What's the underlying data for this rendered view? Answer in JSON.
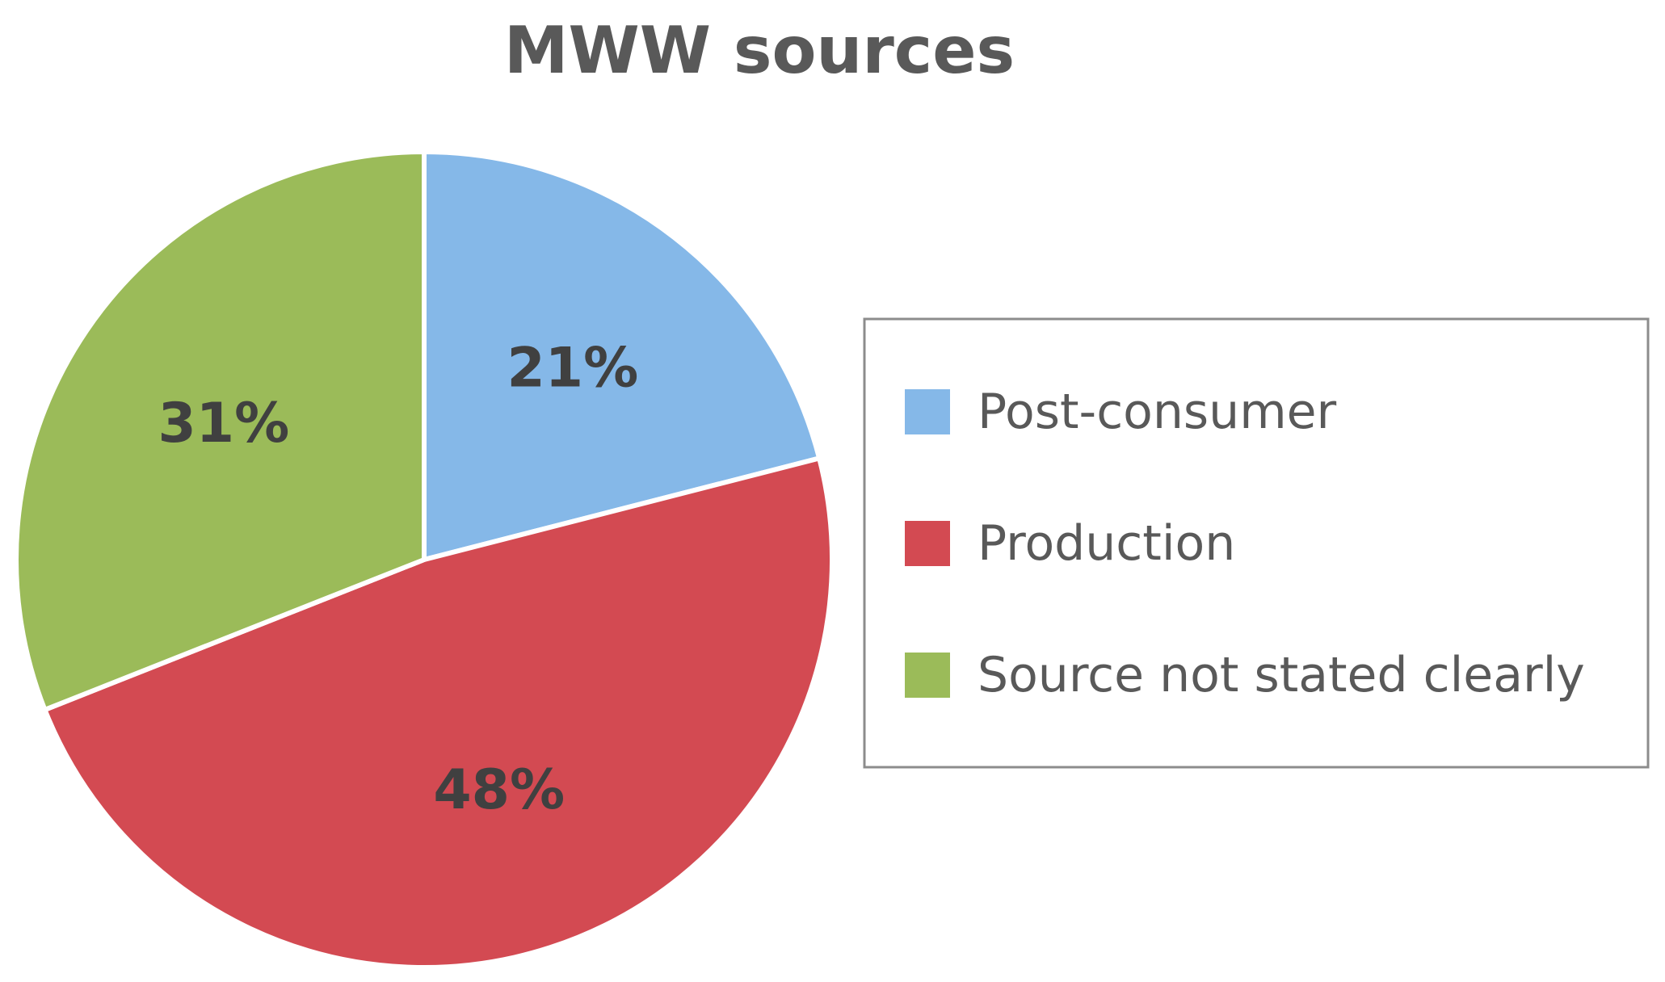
{
  "chart_data": {
    "type": "pie",
    "title": "MWW sources",
    "categories": [
      "Post-consumer",
      "Production",
      "Source not stated clearly"
    ],
    "values": [
      21,
      48,
      31
    ],
    "data_labels": [
      "21%",
      "48%",
      "31%"
    ],
    "colors": [
      "#85b8e8",
      "#d34a52",
      "#9bbb59"
    ],
    "start": "12 o'clock",
    "direction": "clockwise",
    "legend": {
      "placement": "right",
      "entries": [
        "Post-consumer",
        "Production",
        "Source not stated clearly"
      ]
    }
  }
}
